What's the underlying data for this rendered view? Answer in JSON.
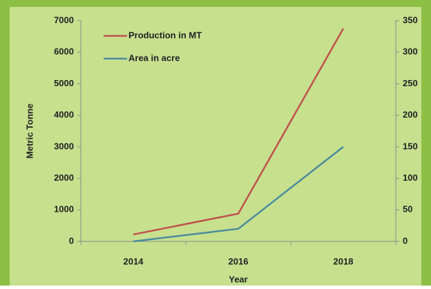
{
  "chart_data": {
    "type": "line",
    "categories": [
      "2014",
      "2016",
      "2018"
    ],
    "series": [
      {
        "name": "Production in MT",
        "color": "#c0504d",
        "values": [
          220,
          880,
          6750
        ]
      },
      {
        "name": "Area in acre",
        "color": "#4a8a9c",
        "values": [
          0,
          20,
          150
        ],
        "axis": "y2"
      }
    ],
    "ylim": [
      0,
      7000
    ],
    "yticks": [
      0,
      1000,
      2000,
      3000,
      4000,
      5000,
      6000,
      7000
    ],
    "y2lim": [
      0,
      350
    ],
    "y2ticks": [
      0,
      50,
      100,
      150,
      200,
      250,
      300,
      350
    ],
    "ylabel": "Metric Tonne",
    "xlabel": "Year",
    "grid": false,
    "legend": "upper-left"
  }
}
